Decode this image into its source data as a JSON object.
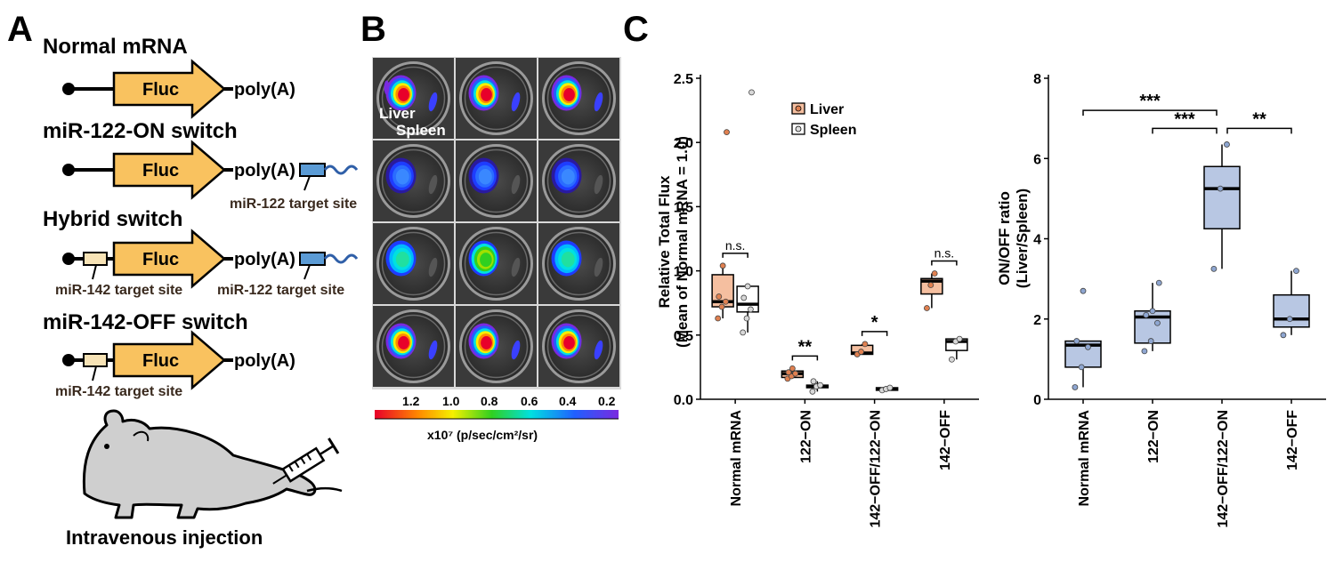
{
  "panels": {
    "a": "A",
    "b": "B",
    "c": "C"
  },
  "constructs": [
    {
      "title": "Normal mRNA",
      "fluc": "Fluc",
      "polya": "poly(A)"
    },
    {
      "title": "miR-122-ON switch",
      "fluc": "Fluc",
      "polya": "poly(A)",
      "site3": "miR-122 target site"
    },
    {
      "title": "Hybrid switch",
      "fluc": "Fluc",
      "polya": "poly(A)",
      "site5": "miR-142 target site",
      "site3": "miR-122 target site"
    },
    {
      "title": "miR-142-OFF switch",
      "fluc": "Fluc",
      "polya": "poly(A)",
      "site5": "miR-142 target site"
    }
  ],
  "injection_caption": "Intravenous injection",
  "imaging": {
    "label_liver": "Liver",
    "label_spleen": "Spleen",
    "scale_ticks": [
      "1.2",
      "1.0",
      "0.8",
      "0.6",
      "0.4",
      "0.2"
    ],
    "scale_unit": "x10⁷ (p/sec/cm²/sr)",
    "well_colors": [
      [
        "red",
        "red",
        "red"
      ],
      [
        "blue",
        "blue",
        "blue"
      ],
      [
        "cyan",
        "green",
        "cyan"
      ],
      [
        "red",
        "red",
        "red"
      ]
    ]
  },
  "colors": {
    "fluc_fill": "#f9c25f",
    "site142_fill": "#f7e3b6",
    "site122_fill": "#5b9bd5",
    "tail": "#2f5fa8",
    "liver_box": "#f5bfa0",
    "liver_point": "#e08050",
    "spleen_box": "#ffffff",
    "ratio_box": "#b8c7e3",
    "ratio_point": "#8ea6d1"
  },
  "chart_data": [
    {
      "type": "box",
      "categories": [
        "Normal mRNA",
        "122−ON",
        "142−OFF/122−ON",
        "142−OFF"
      ],
      "ylabel_line1": "Relative Total Flux",
      "ylabel_line2": "(Mean of Normal mRNA = 1.0)",
      "ylim": [
        0,
        2.5
      ],
      "yticks": [
        "0.0",
        "0.5",
        "1.0",
        "1.5",
        "2.0",
        "2.5"
      ],
      "legend": [
        "Liver",
        "Spleen"
      ],
      "series": [
        {
          "name": "Liver",
          "boxes": [
            {
              "min": 0.63,
              "q1": 0.72,
              "median": 0.76,
              "q3": 0.97,
              "max": 1.04,
              "points": [
                0.63,
                0.72,
                0.76,
                0.8,
                1.04,
                2.08
              ]
            },
            {
              "min": 0.16,
              "q1": 0.17,
              "median": 0.2,
              "q3": 0.22,
              "max": 0.24,
              "points": [
                0.16,
                0.18,
                0.2,
                0.21,
                0.24
              ]
            },
            {
              "min": 0.35,
              "q1": 0.35,
              "median": 0.36,
              "q3": 0.42,
              "max": 0.43,
              "points": [
                0.35,
                0.37,
                0.43
              ]
            },
            {
              "min": 0.71,
              "q1": 0.82,
              "median": 0.92,
              "q3": 0.94,
              "max": 0.98,
              "points": [
                0.71,
                0.89,
                0.98
              ]
            }
          ]
        },
        {
          "name": "Spleen",
          "boxes": [
            {
              "min": 0.52,
              "q1": 0.68,
              "median": 0.74,
              "q3": 0.88,
              "max": 0.88,
              "points": [
                0.52,
                0.63,
                0.7,
                0.79,
                0.88,
                2.39
              ]
            },
            {
              "min": 0.06,
              "q1": 0.09,
              "median": 0.1,
              "q3": 0.11,
              "max": 0.14,
              "points": [
                0.06,
                0.1,
                0.11,
                0.14
              ]
            },
            {
              "min": 0.07,
              "q1": 0.07,
              "median": 0.08,
              "q3": 0.09,
              "max": 0.09,
              "points": [
                0.07,
                0.08,
                0.09
              ]
            },
            {
              "min": 0.31,
              "q1": 0.38,
              "median": 0.45,
              "q3": 0.47,
              "max": 0.47,
              "points": [
                0.31,
                0.45,
                0.47
              ]
            }
          ]
        }
      ],
      "significance": [
        "n.s.",
        "**",
        "*",
        "n.s."
      ]
    },
    {
      "type": "box",
      "categories": [
        "Normal mRNA",
        "122−ON",
        "142−OFF/122−ON",
        "142−OFF"
      ],
      "ylabel_line1": "ON/OFF ratio",
      "ylabel_line2": "(Liver/Spleen)",
      "ylim": [
        0,
        8
      ],
      "yticks": [
        "0",
        "2",
        "4",
        "6",
        "8"
      ],
      "boxes": [
        {
          "min": 0.3,
          "q1": 0.8,
          "median": 1.35,
          "q3": 1.45,
          "max": 1.45,
          "points": [
            0.3,
            0.8,
            1.3,
            1.45,
            2.7
          ]
        },
        {
          "min": 1.2,
          "q1": 1.4,
          "median": 2.05,
          "q3": 2.2,
          "max": 2.9,
          "points": [
            1.2,
            1.45,
            1.9,
            2.1,
            2.2,
            2.9
          ]
        },
        {
          "min": 3.25,
          "q1": 4.25,
          "median": 5.25,
          "q3": 5.8,
          "max": 6.35,
          "points": [
            3.25,
            5.25,
            6.35
          ]
        },
        {
          "min": 1.6,
          "q1": 1.8,
          "median": 2.0,
          "q3": 2.6,
          "max": 3.2,
          "points": [
            1.6,
            2.0,
            3.2
          ]
        }
      ],
      "significance": [
        {
          "from": 0,
          "to": 2,
          "label": "***"
        },
        {
          "from": 1,
          "to": 2,
          "label": "***"
        },
        {
          "from": 2,
          "to": 3,
          "label": "**"
        }
      ]
    }
  ]
}
